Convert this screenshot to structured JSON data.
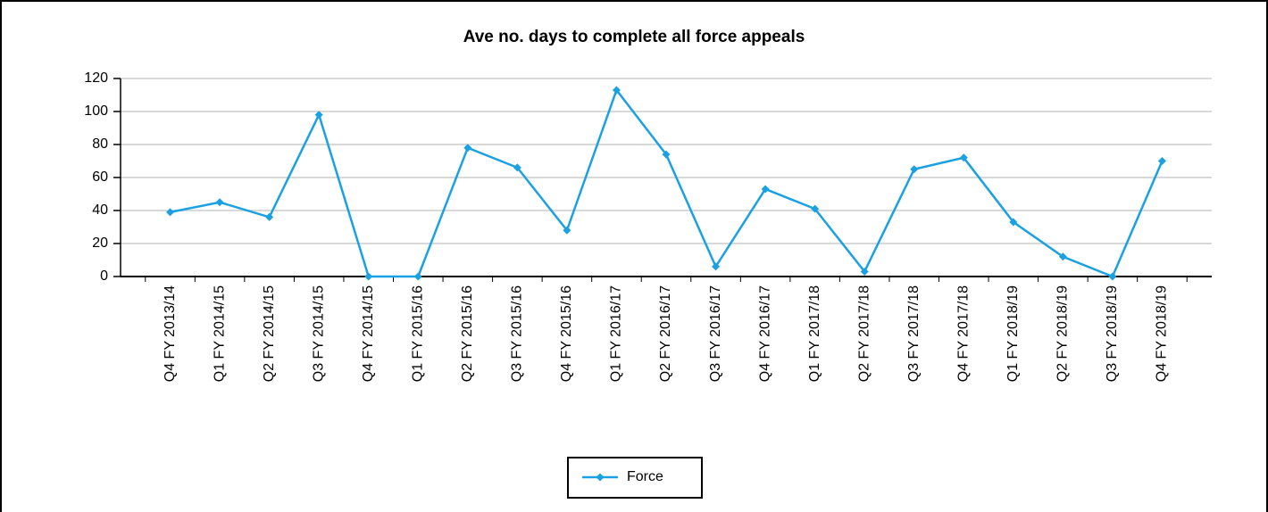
{
  "chart_data": {
    "type": "line",
    "title": "Ave no. days to complete all force appeals",
    "categories": [
      "Q4 FY 2013/14",
      "Q1 FY 2014/15",
      "Q2 FY 2014/15",
      "Q3 FY 2014/15",
      "Q4 FY 2014/15",
      "Q1 FY 2015/16",
      "Q2 FY 2015/16",
      "Q3 FY 2015/16",
      "Q4 FY 2015/16",
      "Q1 FY 2016/17",
      "Q2 FY 2016/17",
      "Q3 FY 2016/17",
      "Q4 FY 2016/17",
      "Q1 FY 2017/18",
      "Q2 FY 2017/18",
      "Q3 FY 2017/18",
      "Q4 FY 2017/18",
      "Q1 FY 2018/19",
      "Q2 FY 2018/19",
      "Q3 FY 2018/19",
      "Q4 FY 2018/19"
    ],
    "series": [
      {
        "name": "Force",
        "color": "#1ba1e2",
        "values": [
          39,
          45,
          36,
          98,
          0,
          0,
          78,
          66,
          28,
          113,
          74,
          6,
          53,
          41,
          3,
          65,
          72,
          33,
          12,
          0,
          70
        ]
      }
    ],
    "ylim": [
      0,
      120
    ],
    "yticks": [
      0,
      20,
      40,
      60,
      80,
      100,
      120
    ],
    "grid": true,
    "legend": "bottom"
  }
}
